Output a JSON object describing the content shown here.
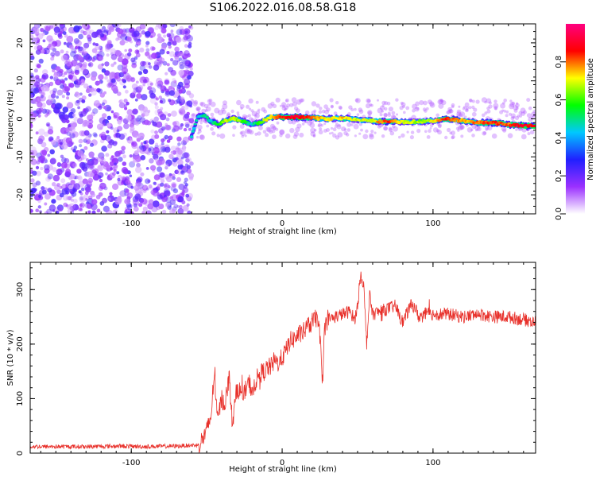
{
  "title": "S106.2022.016.08.58.G18",
  "colors": {
    "snr_line": "#e8302a",
    "grid": "#000000",
    "noise_purple": "#7a2bdc"
  },
  "chart_data": [
    {
      "type": "heatmap",
      "xlabel": "Height of straight line (km)",
      "ylabel": "Frequency (Hz)",
      "xlim": [
        -167,
        168
      ],
      "ylim": [
        -25,
        25
      ],
      "xticks": [
        -100,
        0,
        100
      ],
      "yticks": [
        -20,
        -10,
        0,
        10,
        20
      ],
      "grid": false,
      "colorbar": {
        "label": "Normalized spectral amplitude",
        "range": [
          0,
          1
        ],
        "ticks": [
          0.0,
          0.2,
          0.4,
          0.6,
          0.8
        ],
        "colormap": "rainbow",
        "stops": [
          "#ffffff",
          "#9b30ff",
          "#2020ff",
          "#00c8ff",
          "#00ff00",
          "#ffff00",
          "#ff0000",
          "#ff0080"
        ]
      },
      "noise_region": {
        "x_range": [
          -167,
          -60
        ],
        "freq_range": [
          -25,
          25
        ],
        "amplitude": 0.15
      },
      "ridge": [
        {
          "x": -60,
          "f": -4.5,
          "amp": 0.45
        },
        {
          "x": -56,
          "f": 0.5,
          "amp": 0.45
        },
        {
          "x": -52,
          "f": 1.0,
          "amp": 0.5
        },
        {
          "x": -48,
          "f": -0.5,
          "amp": 0.45
        },
        {
          "x": -42,
          "f": -1.5,
          "amp": 0.55
        },
        {
          "x": -38,
          "f": -0.5,
          "amp": 0.65
        },
        {
          "x": -32,
          "f": 0.0,
          "amp": 0.7
        },
        {
          "x": -26,
          "f": -0.5,
          "amp": 0.6
        },
        {
          "x": -20,
          "f": -1.5,
          "amp": 0.45
        },
        {
          "x": -14,
          "f": -1.0,
          "amp": 0.6
        },
        {
          "x": -8,
          "f": 0.5,
          "amp": 0.75
        },
        {
          "x": 0,
          "f": 0.5,
          "amp": 0.85
        },
        {
          "x": 10,
          "f": 0.5,
          "amp": 0.9
        },
        {
          "x": 20,
          "f": 0.3,
          "amp": 0.8
        },
        {
          "x": 30,
          "f": 0.0,
          "amp": 0.7
        },
        {
          "x": 40,
          "f": 0.2,
          "amp": 0.75
        },
        {
          "x": 50,
          "f": -0.3,
          "amp": 0.7
        },
        {
          "x": 60,
          "f": -0.5,
          "amp": 0.7
        },
        {
          "x": 70,
          "f": -0.8,
          "amp": 0.85
        },
        {
          "x": 80,
          "f": -0.8,
          "amp": 0.7
        },
        {
          "x": 90,
          "f": -0.8,
          "amp": 0.65
        },
        {
          "x": 100,
          "f": -0.5,
          "amp": 0.7
        },
        {
          "x": 110,
          "f": 0.0,
          "amp": 0.85
        },
        {
          "x": 120,
          "f": -0.5,
          "amp": 0.75
        },
        {
          "x": 130,
          "f": -1.0,
          "amp": 0.8
        },
        {
          "x": 140,
          "f": -1.0,
          "amp": 0.85
        },
        {
          "x": 150,
          "f": -1.5,
          "amp": 0.8
        },
        {
          "x": 160,
          "f": -1.8,
          "amp": 0.9
        },
        {
          "x": 168,
          "f": -1.8,
          "amp": 0.85
        }
      ]
    },
    {
      "type": "line",
      "xlabel": "Height of straight line (km)",
      "ylabel": "SNR (10 * v/v)",
      "xlim": [
        -167,
        168
      ],
      "ylim": [
        0,
        350
      ],
      "xticks": [
        -100,
        0,
        100
      ],
      "yticks": [
        0,
        100,
        200,
        300
      ],
      "grid": false,
      "series": [
        {
          "x": [
            -167,
            -150,
            -130,
            -110,
            -90,
            -70,
            -55,
            -50,
            -47,
            -45,
            -43,
            -40,
            -38,
            -35,
            -33,
            -30,
            -27,
            -25,
            -22,
            -20,
            -17,
            -15,
            -12,
            -10,
            -7,
            -5,
            -3,
            0,
            3,
            5,
            8,
            10,
            13,
            15,
            18,
            20,
            22,
            24,
            26,
            27,
            28,
            30,
            35,
            40,
            45,
            48,
            50,
            52,
            54,
            56,
            58,
            60,
            65,
            70,
            75,
            80,
            85,
            88,
            90,
            95,
            100,
            110,
            120,
            130,
            140,
            150,
            160,
            168
          ],
          "y": [
            12,
            12,
            12,
            13,
            12,
            13,
            15,
            40,
            70,
            150,
            60,
            100,
            90,
            140,
            50,
            120,
            110,
            110,
            130,
            115,
            135,
            145,
            150,
            155,
            160,
            170,
            165,
            175,
            190,
            205,
            210,
            215,
            220,
            225,
            235,
            240,
            245,
            250,
            170,
            120,
            230,
            245,
            250,
            255,
            260,
            245,
            270,
            330,
            310,
            200,
            290,
            255,
            260,
            265,
            270,
            240,
            270,
            270,
            250,
            255,
            255,
            255,
            250,
            255,
            250,
            250,
            245,
            240
          ]
        }
      ]
    }
  ]
}
